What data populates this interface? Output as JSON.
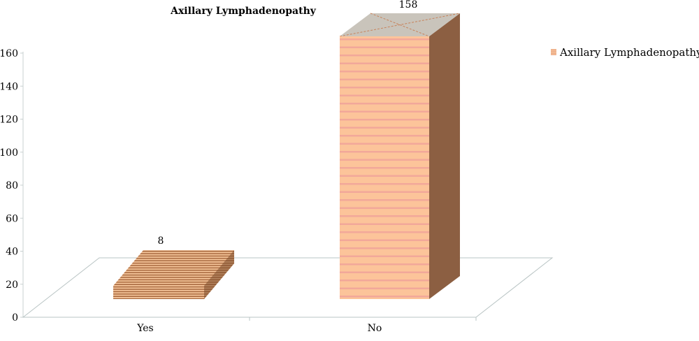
{
  "chart_data": {
    "type": "bar",
    "title": "Axillary Lymphadenopathy",
    "categories": [
      "Yes",
      "No"
    ],
    "series": [
      {
        "name": "Axillary Lymphadenopathy",
        "values": [
          8,
          158
        ]
      }
    ],
    "data_labels": [
      "8",
      "158"
    ],
    "ylim": [
      0,
      160
    ],
    "yticks": [
      0,
      20,
      40,
      60,
      80,
      100,
      120,
      140,
      160
    ],
    "legend_position": "top-right",
    "grid": false,
    "colors": {
      "no_front": "#fcc49a",
      "no_stripe": "#f2a89a",
      "no_side": "#8c5f42",
      "no_top": "#c9c4bb",
      "yes_light": "#f7c79c",
      "yes_dark": "#a8693f",
      "yes_side": "#7a4a2a",
      "floor_line": "#b9c4c4"
    }
  }
}
